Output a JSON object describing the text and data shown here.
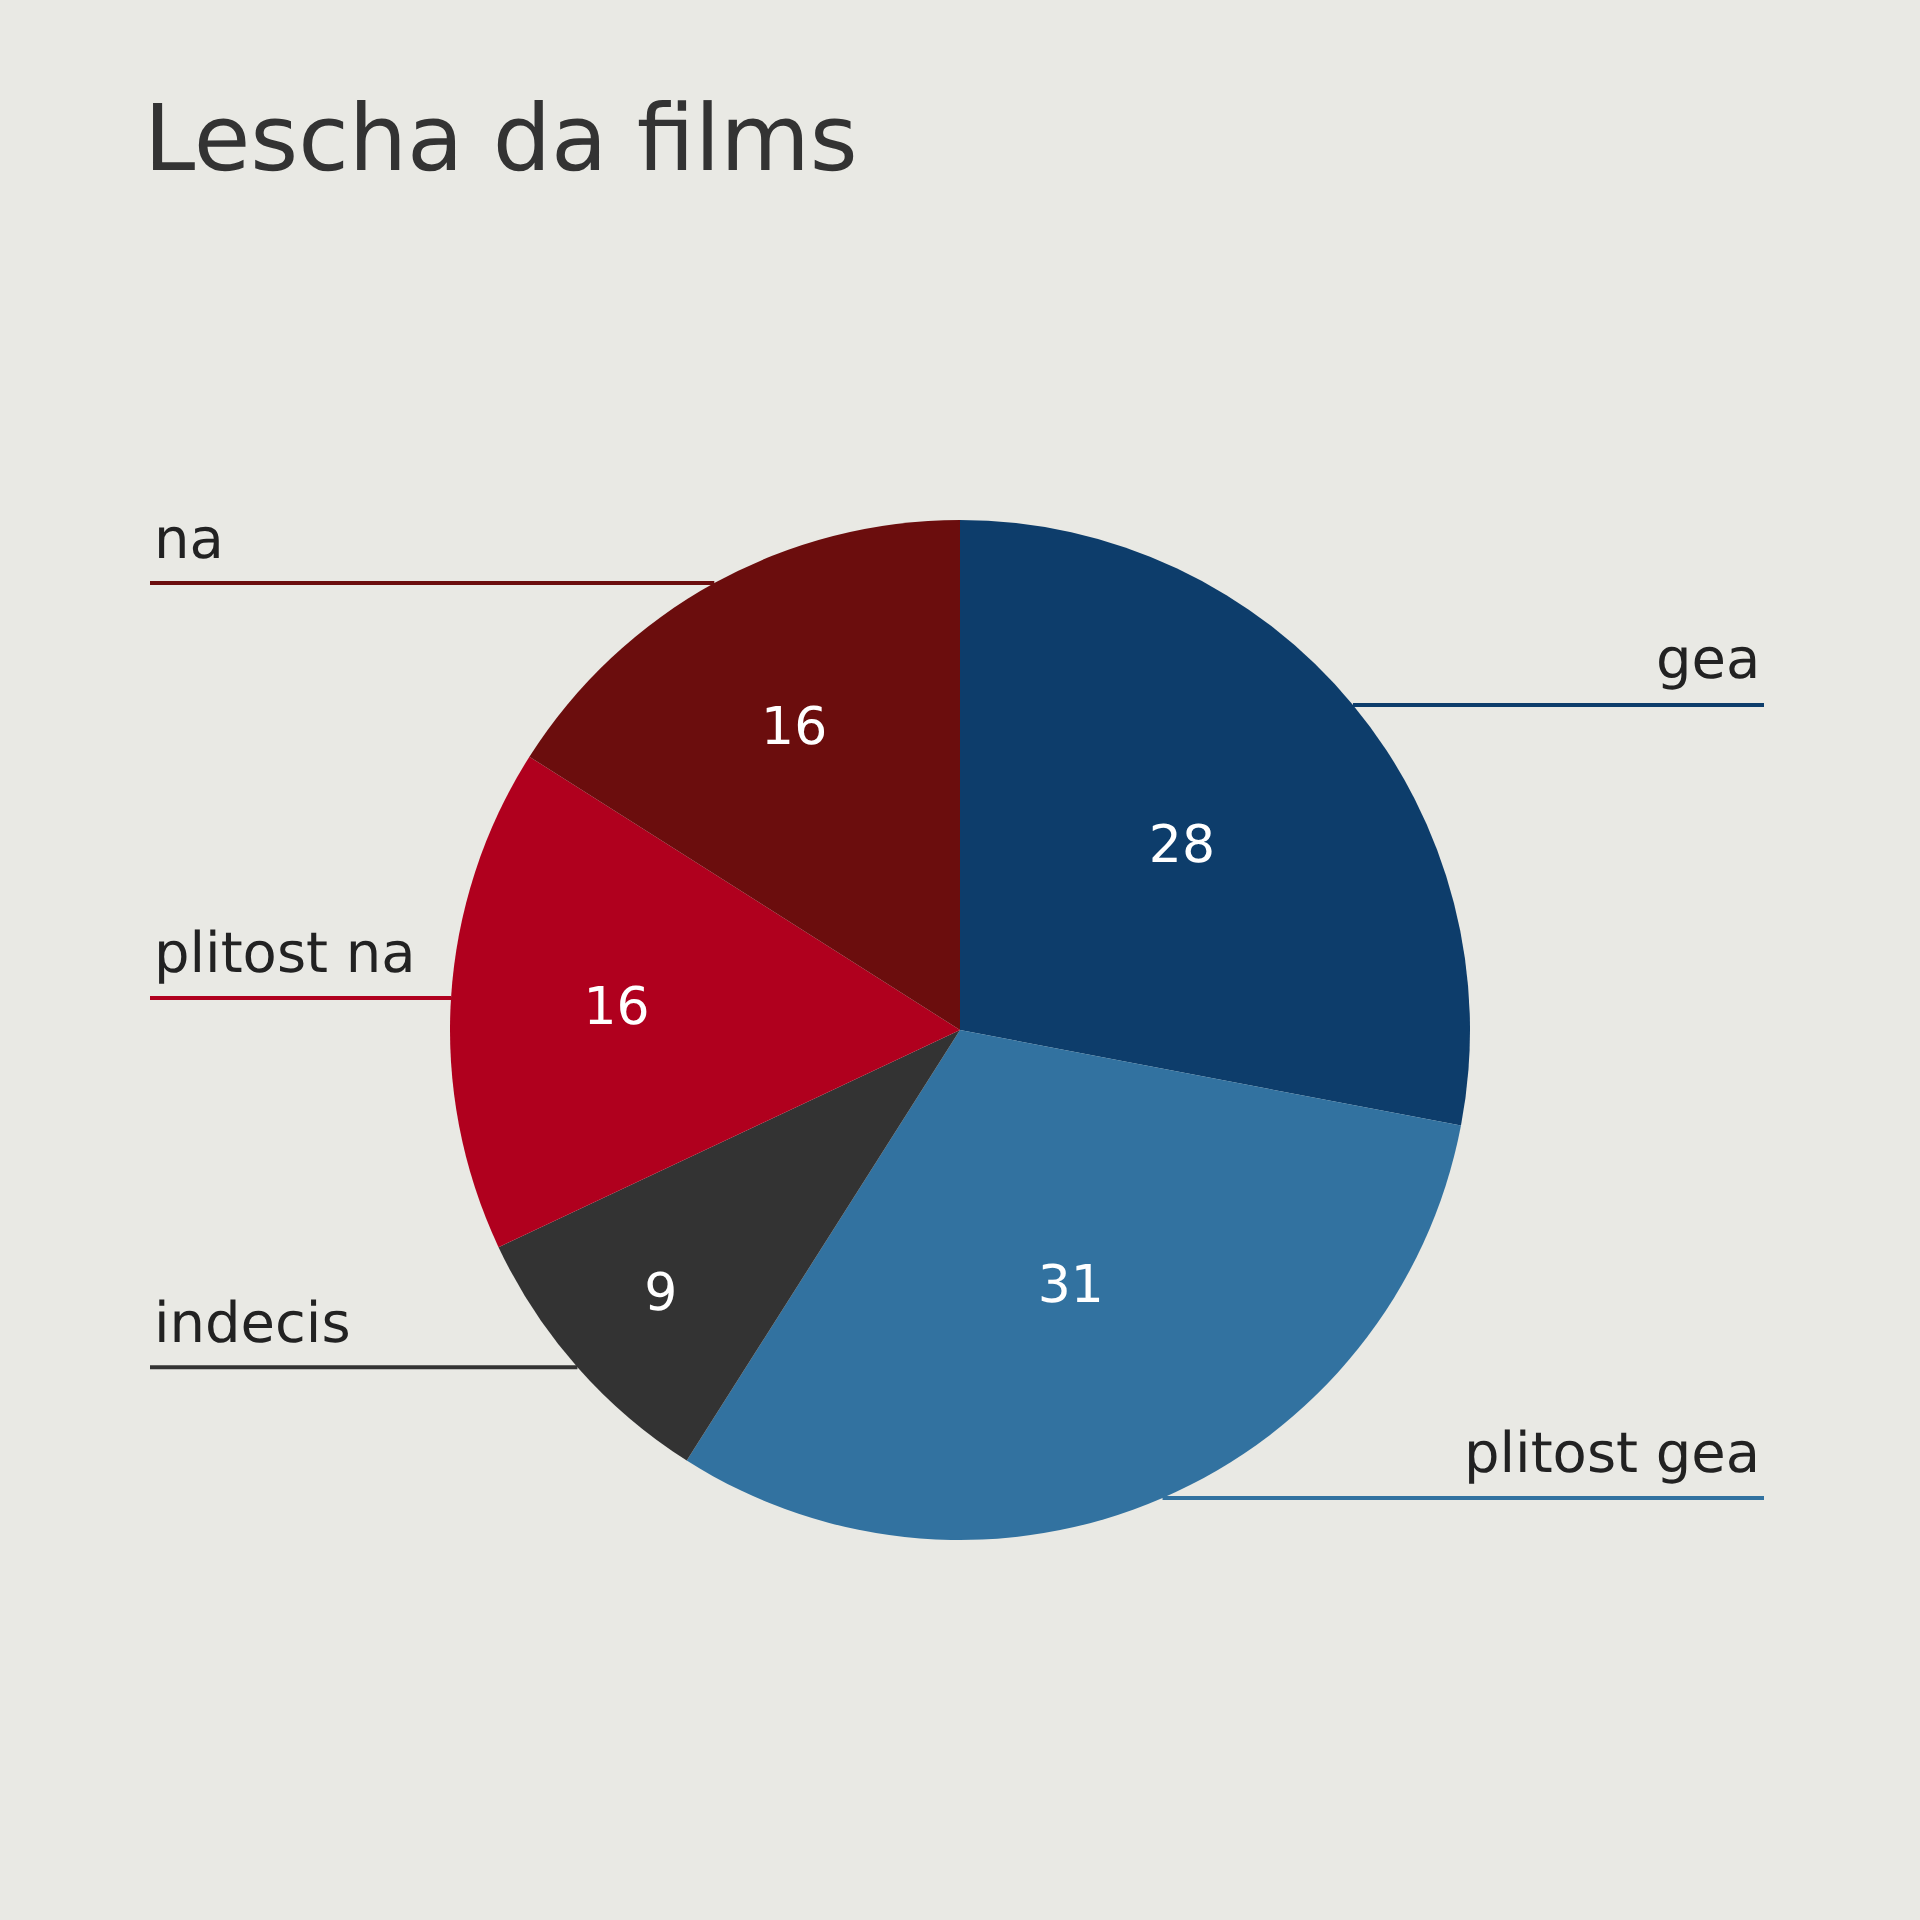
{
  "chart_data": {
    "type": "pie",
    "title": "Lescha da films",
    "categories": [
      "gea",
      "plitost gea",
      "indecis",
      "plitost na",
      "na"
    ],
    "values": [
      28,
      31,
      9,
      16,
      16
    ],
    "colors": [
      "#0d3d6b",
      "#3272a0",
      "#333333",
      "#b0001e",
      "#6b0d0d"
    ],
    "data_labels": true,
    "legend": false
  }
}
